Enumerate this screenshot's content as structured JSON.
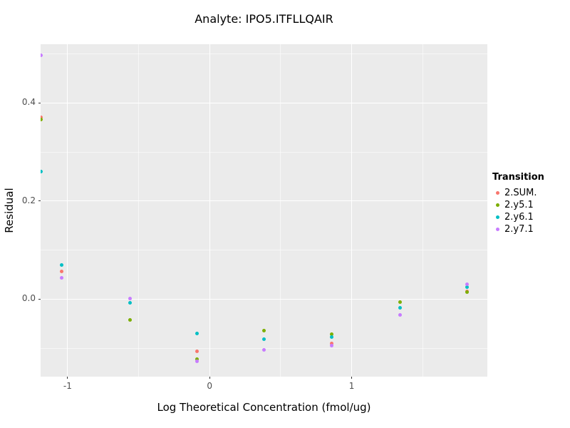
{
  "title": "Analyte: IPO5.ITFLLQAIR",
  "x_axis_title": "Log Theoretical Concentration (fmol/ug)",
  "y_axis_title": "Residual",
  "legend": {
    "title": "Transition"
  },
  "colors": {
    "panel_background": "#EBEBEB",
    "grid_major": "#FFFFFF",
    "tick_text": "#4D4D4D"
  },
  "chart_data": {
    "type": "scatter",
    "title": "Analyte: IPO5.ITFLLQAIR",
    "xlabel": "Log Theoretical Concentration (fmol/ug)",
    "ylabel": "Residual",
    "xlim": [
      -1.19,
      1.955
    ],
    "ylim": [
      -0.158,
      0.52
    ],
    "grid": true,
    "legend_position": "right",
    "x_ticks": [
      {
        "value": -1,
        "label": "-1"
      },
      {
        "value": 0,
        "label": "0"
      },
      {
        "value": 1,
        "label": "1"
      }
    ],
    "y_ticks": [
      {
        "value": 0.0,
        "label": "0.0"
      },
      {
        "value": 0.2,
        "label": "0.2"
      },
      {
        "value": 0.4,
        "label": "0.4"
      }
    ],
    "x_minor": [
      -0.5,
      0.5,
      1.5
    ],
    "y_minor": [
      -0.1,
      0.1,
      0.3,
      0.5
    ],
    "series": [
      {
        "name": "2.SUM.",
        "color": "#F8766D",
        "points": [
          [
            -1.19,
            0.371
          ],
          [
            -1.04,
            0.056
          ],
          [
            -0.09,
            -0.106
          ],
          [
            0.86,
            -0.09
          ],
          [
            1.81,
            0.016
          ]
        ]
      },
      {
        "name": "2.y5.1",
        "color": "#7CAE00",
        "points": [
          [
            -1.19,
            0.366
          ],
          [
            -0.56,
            -0.042
          ],
          [
            -0.09,
            -0.122
          ],
          [
            0.38,
            -0.064
          ],
          [
            0.86,
            -0.071
          ],
          [
            1.34,
            -0.006
          ],
          [
            1.81,
            0.015
          ]
        ]
      },
      {
        "name": "2.y6.1",
        "color": "#00BFC4",
        "points": [
          [
            -1.19,
            0.26
          ],
          [
            -1.04,
            0.07
          ],
          [
            -0.56,
            -0.008
          ],
          [
            -0.09,
            -0.07
          ],
          [
            0.38,
            -0.082
          ],
          [
            0.86,
            -0.077
          ],
          [
            1.34,
            -0.018
          ],
          [
            1.81,
            0.024
          ]
        ]
      },
      {
        "name": "2.y7.1",
        "color": "#C77CFF",
        "points": [
          [
            -1.19,
            0.497
          ],
          [
            -1.04,
            0.044
          ],
          [
            -0.56,
            0.002
          ],
          [
            -0.09,
            -0.126
          ],
          [
            0.38,
            -0.104
          ],
          [
            0.86,
            -0.094
          ],
          [
            1.34,
            -0.032
          ],
          [
            1.81,
            0.031
          ]
        ]
      }
    ]
  }
}
